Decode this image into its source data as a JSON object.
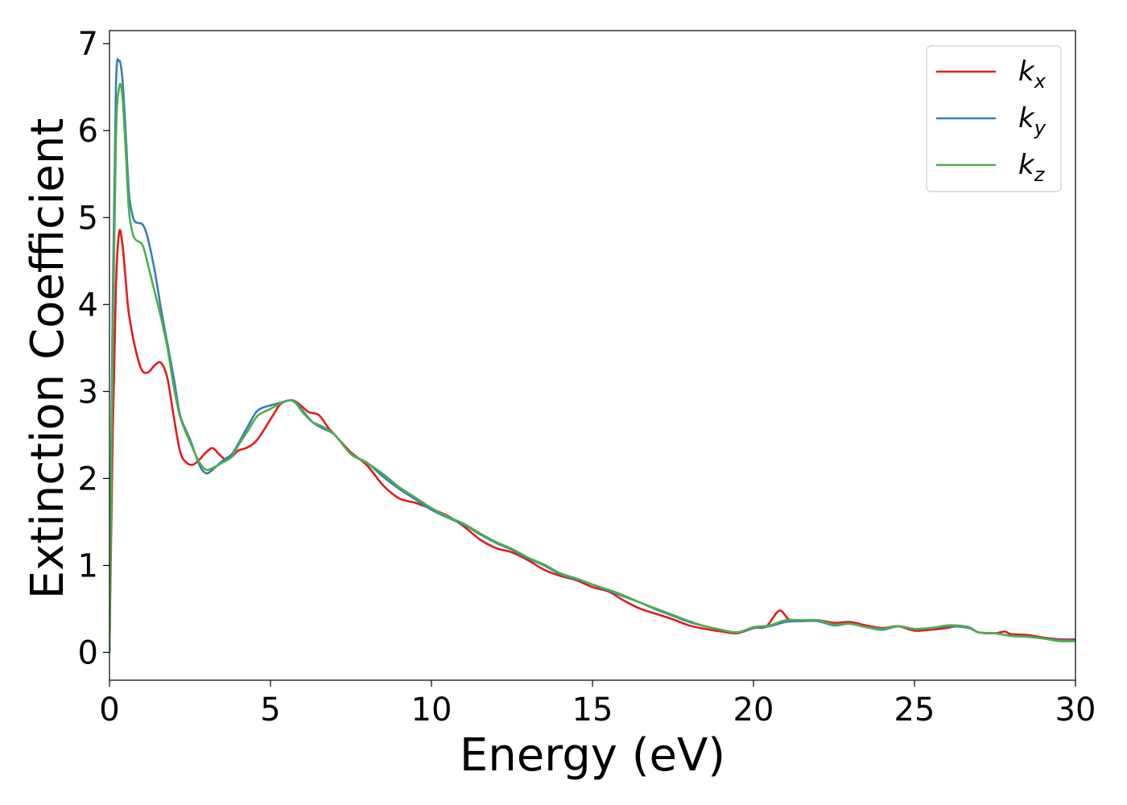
{
  "chart_data": {
    "type": "line",
    "title": "",
    "xlabel": "Energy (eV)",
    "ylabel": "Extinction Coefficient",
    "xlim": [
      0,
      30
    ],
    "ylim": [
      -0.32,
      7.15
    ],
    "xticks": [
      0,
      5,
      10,
      15,
      20,
      25,
      30
    ],
    "yticks": [
      0,
      1,
      2,
      3,
      4,
      5,
      6,
      7
    ],
    "grid": false,
    "legend_position": "top-right",
    "series": [
      {
        "name": "k",
        "subscript": "x",
        "color": "#e41a1c",
        "x": [
          0,
          0.1,
          0.2,
          0.3,
          0.4,
          0.5,
          0.6,
          0.8,
          1.0,
          1.2,
          1.4,
          1.6,
          1.8,
          2.0,
          2.2,
          2.4,
          2.6,
          2.8,
          3.0,
          3.2,
          3.4,
          3.6,
          3.8,
          4.0,
          4.3,
          4.6,
          5.0,
          5.3,
          5.6,
          5.8,
          6.0,
          6.2,
          6.5,
          6.8,
          7.0,
          7.5,
          8.0,
          8.5,
          9.0,
          9.5,
          10.0,
          10.5,
          11.0,
          11.5,
          12.0,
          12.5,
          13.0,
          13.5,
          14.0,
          14.5,
          15.0,
          15.5,
          16.0,
          16.5,
          17.0,
          17.5,
          18.0,
          18.5,
          19.0,
          19.5,
          20.0,
          20.4,
          20.8,
          21.1,
          21.5,
          22.0,
          22.5,
          23.0,
          23.5,
          24.0,
          24.5,
          25.0,
          25.5,
          26.0,
          26.3,
          26.7,
          27.0,
          27.5,
          27.8,
          28.0,
          28.5,
          29.0,
          29.5,
          30.0
        ],
        "y": [
          0,
          2.5,
          4.2,
          4.83,
          4.7,
          4.3,
          3.9,
          3.5,
          3.25,
          3.22,
          3.3,
          3.33,
          3.15,
          2.7,
          2.3,
          2.18,
          2.16,
          2.22,
          2.3,
          2.35,
          2.28,
          2.22,
          2.25,
          2.32,
          2.36,
          2.45,
          2.68,
          2.85,
          2.9,
          2.88,
          2.82,
          2.76,
          2.73,
          2.58,
          2.5,
          2.3,
          2.15,
          1.92,
          1.77,
          1.72,
          1.65,
          1.57,
          1.45,
          1.3,
          1.2,
          1.15,
          1.06,
          0.95,
          0.88,
          0.83,
          0.75,
          0.7,
          0.59,
          0.5,
          0.44,
          0.38,
          0.31,
          0.27,
          0.24,
          0.22,
          0.28,
          0.3,
          0.48,
          0.38,
          0.36,
          0.37,
          0.34,
          0.35,
          0.31,
          0.28,
          0.3,
          0.25,
          0.26,
          0.28,
          0.3,
          0.28,
          0.23,
          0.22,
          0.24,
          0.21,
          0.2,
          0.17,
          0.15,
          0.15
        ]
      },
      {
        "name": "k",
        "subscript": "y",
        "color": "#377eb8",
        "x": [
          0,
          0.1,
          0.2,
          0.3,
          0.4,
          0.5,
          0.6,
          0.7,
          0.8,
          1.0,
          1.1,
          1.2,
          1.4,
          1.6,
          1.8,
          2.0,
          2.2,
          2.5,
          2.8,
          3.0,
          3.2,
          3.5,
          3.8,
          4.0,
          4.3,
          4.6,
          5.0,
          5.3,
          5.6,
          5.8,
          6.0,
          6.3,
          6.6,
          7.0,
          7.5,
          8.0,
          8.5,
          9.0,
          9.5,
          10.0,
          10.5,
          11.0,
          11.5,
          12.0,
          12.5,
          13.0,
          13.5,
          14.0,
          14.5,
          15.0,
          15.5,
          16.0,
          16.5,
          17.0,
          17.5,
          18.0,
          18.5,
          19.0,
          19.5,
          20.0,
          20.5,
          21.0,
          21.5,
          22.0,
          22.5,
          23.0,
          23.5,
          24.0,
          24.5,
          25.0,
          25.5,
          26.0,
          26.3,
          26.7,
          27.0,
          27.5,
          28.0,
          28.5,
          29.0,
          29.5,
          30.0
        ],
        "y": [
          0,
          4.0,
          6.5,
          6.8,
          6.6,
          6.0,
          5.3,
          5.05,
          4.95,
          4.93,
          4.87,
          4.75,
          4.4,
          3.95,
          3.55,
          3.15,
          2.72,
          2.45,
          2.15,
          2.06,
          2.1,
          2.2,
          2.28,
          2.4,
          2.6,
          2.78,
          2.84,
          2.87,
          2.9,
          2.87,
          2.78,
          2.65,
          2.58,
          2.5,
          2.28,
          2.18,
          2.02,
          1.88,
          1.76,
          1.64,
          1.55,
          1.47,
          1.36,
          1.26,
          1.18,
          1.08,
          1.0,
          0.9,
          0.84,
          0.78,
          0.71,
          0.64,
          0.57,
          0.49,
          0.42,
          0.35,
          0.3,
          0.26,
          0.23,
          0.28,
          0.3,
          0.35,
          0.36,
          0.36,
          0.31,
          0.33,
          0.29,
          0.26,
          0.3,
          0.27,
          0.28,
          0.3,
          0.3,
          0.28,
          0.23,
          0.22,
          0.19,
          0.18,
          0.16,
          0.14,
          0.14
        ]
      },
      {
        "name": "k",
        "subscript": "z",
        "color": "#4daf4a",
        "x": [
          0,
          0.1,
          0.2,
          0.3,
          0.4,
          0.5,
          0.6,
          0.7,
          0.8,
          1.0,
          1.1,
          1.2,
          1.4,
          1.6,
          1.8,
          2.0,
          2.2,
          2.5,
          2.8,
          3.0,
          3.2,
          3.5,
          3.8,
          4.0,
          4.3,
          4.6,
          5.0,
          5.3,
          5.6,
          5.8,
          6.0,
          6.3,
          6.6,
          7.0,
          7.5,
          8.0,
          8.5,
          9.0,
          9.5,
          10.0,
          10.5,
          11.0,
          11.5,
          12.0,
          12.5,
          13.0,
          13.5,
          14.0,
          14.5,
          15.0,
          15.5,
          16.0,
          16.5,
          17.0,
          17.5,
          18.0,
          18.5,
          19.0,
          19.5,
          20.0,
          20.5,
          21.0,
          21.5,
          22.0,
          22.5,
          23.0,
          23.5,
          24.0,
          24.5,
          25.0,
          25.5,
          26.0,
          26.3,
          26.7,
          27.0,
          27.5,
          28.0,
          28.5,
          29.0,
          29.5,
          30.0
        ],
        "y": [
          0,
          3.5,
          5.9,
          6.5,
          6.4,
          5.8,
          5.1,
          4.85,
          4.75,
          4.7,
          4.6,
          4.45,
          4.15,
          3.85,
          3.5,
          3.05,
          2.7,
          2.42,
          2.18,
          2.1,
          2.12,
          2.18,
          2.25,
          2.38,
          2.55,
          2.72,
          2.8,
          2.86,
          2.9,
          2.86,
          2.76,
          2.65,
          2.6,
          2.5,
          2.28,
          2.18,
          2.05,
          1.9,
          1.78,
          1.66,
          1.56,
          1.48,
          1.37,
          1.27,
          1.19,
          1.09,
          1.01,
          0.91,
          0.85,
          0.78,
          0.72,
          0.65,
          0.57,
          0.5,
          0.43,
          0.36,
          0.3,
          0.26,
          0.23,
          0.29,
          0.31,
          0.37,
          0.37,
          0.37,
          0.32,
          0.33,
          0.29,
          0.27,
          0.3,
          0.27,
          0.28,
          0.31,
          0.31,
          0.29,
          0.23,
          0.22,
          0.19,
          0.18,
          0.16,
          0.13,
          0.13
        ]
      }
    ]
  }
}
